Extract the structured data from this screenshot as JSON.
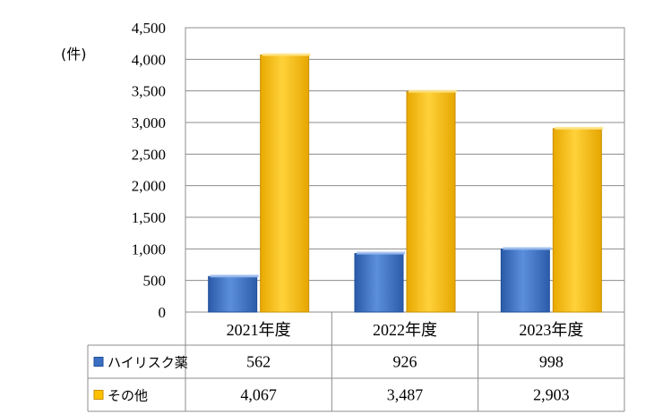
{
  "chart_data": {
    "type": "bar",
    "unit_label": "(件)",
    "categories": [
      "2021年度",
      "2022年度",
      "2023年度"
    ],
    "series": [
      {
        "name": "ハイリスク薬",
        "values": [
          562,
          926,
          998
        ],
        "display": [
          "562",
          "926",
          "998"
        ],
        "color": "#3a6fc4"
      },
      {
        "name": "その他",
        "values": [
          4067,
          3487,
          2903
        ],
        "display": [
          "4,067",
          "3,487",
          "2,903"
        ],
        "color": "#ffc000"
      }
    ],
    "ylim": [
      0,
      4500
    ],
    "ytick_values": [
      0,
      500,
      1000,
      1500,
      2000,
      2500,
      3000,
      3500,
      4000,
      4500
    ],
    "ytick_labels": [
      "0",
      "500",
      "1,000",
      "1,500",
      "2,000",
      "2,500",
      "3,000",
      "3,500",
      "4,000",
      "4,500"
    ],
    "grid": true,
    "legend": "data-table"
  }
}
